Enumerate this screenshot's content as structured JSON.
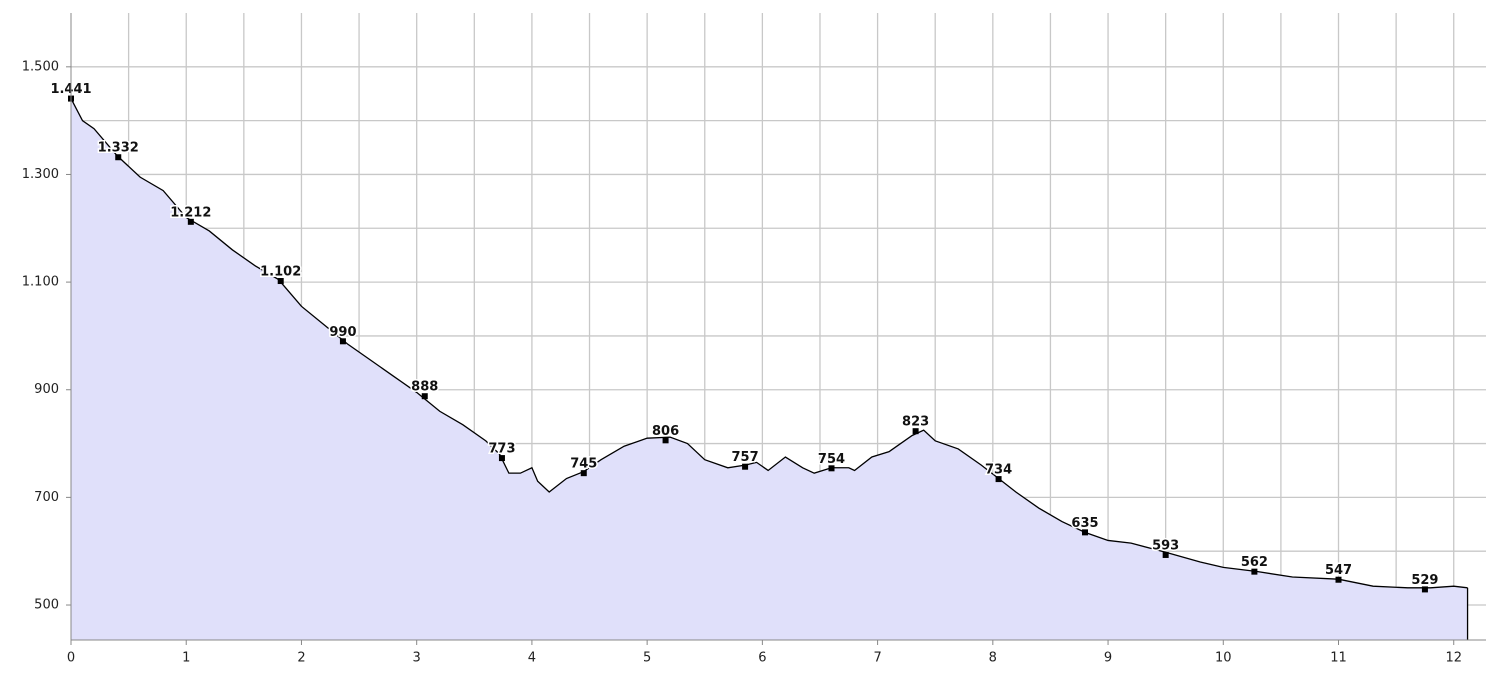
{
  "chart_data": {
    "type": "area",
    "xlim": [
      0,
      12.28
    ],
    "ylim": [
      435,
      1600
    ],
    "xticks": [
      0,
      1,
      2,
      3,
      4,
      5,
      6,
      7,
      8,
      9,
      10,
      11,
      12
    ],
    "yticks": [
      500,
      700,
      900,
      {
        "value": 1100,
        "label": "1.100"
      },
      {
        "value": 1300,
        "label": "1.300"
      },
      {
        "value": 1500,
        "label": "1.500"
      }
    ],
    "xgrid": [
      0.5,
      1,
      1.5,
      2,
      2.5,
      3,
      3.5,
      4,
      4.5,
      5,
      5.5,
      6,
      6.5,
      7,
      7.5,
      8,
      8.5,
      9,
      9.5,
      10,
      10.5,
      11,
      11.5,
      12
    ],
    "ygrid": [
      500,
      600,
      700,
      800,
      900,
      1000,
      1100,
      1200,
      1300,
      1400,
      1500
    ],
    "grid": true,
    "fill_color": "#e0e0fa",
    "line_color": "#000000",
    "profile": {
      "x": [
        0,
        0.1,
        0.2,
        0.4,
        0.6,
        0.8,
        1.0,
        1.2,
        1.4,
        1.6,
        1.8,
        2.0,
        2.2,
        2.4,
        2.6,
        2.8,
        3.0,
        3.2,
        3.4,
        3.6,
        3.72,
        3.8,
        3.9,
        4.0,
        4.05,
        4.15,
        4.3,
        4.45,
        4.6,
        4.8,
        5.0,
        5.2,
        5.35,
        5.5,
        5.7,
        5.85,
        5.95,
        6.05,
        6.2,
        6.35,
        6.45,
        6.6,
        6.75,
        6.8,
        6.95,
        7.1,
        7.3,
        7.4,
        7.5,
        7.7,
        7.9,
        8.05,
        8.2,
        8.4,
        8.6,
        8.8,
        9.0,
        9.2,
        9.5,
        9.8,
        10.0,
        10.3,
        10.6,
        11.0,
        11.3,
        11.6,
        11.8,
        12.0,
        12.12
      ],
      "values": [
        1441,
        1400,
        1385,
        1335,
        1295,
        1270,
        1220,
        1195,
        1160,
        1130,
        1105,
        1055,
        1020,
        985,
        955,
        925,
        895,
        860,
        835,
        805,
        780,
        745,
        745,
        755,
        730,
        710,
        735,
        748,
        770,
        795,
        810,
        812,
        800,
        770,
        755,
        760,
        765,
        750,
        775,
        755,
        745,
        755,
        755,
        750,
        775,
        785,
        815,
        825,
        805,
        790,
        760,
        735,
        710,
        680,
        655,
        635,
        620,
        615,
        598,
        580,
        570,
        562,
        552,
        548,
        535,
        532,
        532,
        535,
        532
      ]
    },
    "markers": {
      "x": [
        0,
        0.41,
        1.04,
        1.82,
        2.36,
        3.07,
        3.74,
        4.45,
        5.16,
        5.85,
        6.6,
        7.33,
        8.05,
        8.8,
        9.5,
        10.27,
        11.0,
        11.75
      ],
      "values": [
        1441,
        1332,
        1212,
        1102,
        990,
        888,
        773,
        745,
        806,
        757,
        754,
        823,
        734,
        635,
        593,
        562,
        547,
        529
      ],
      "value_labels": [
        "1.441",
        "1.332",
        "1.212",
        "1.102",
        "990",
        "888",
        "773",
        "745",
        "806",
        "757",
        "754",
        "823",
        "734",
        "635",
        "593",
        "562",
        "547",
        "529"
      ]
    }
  }
}
